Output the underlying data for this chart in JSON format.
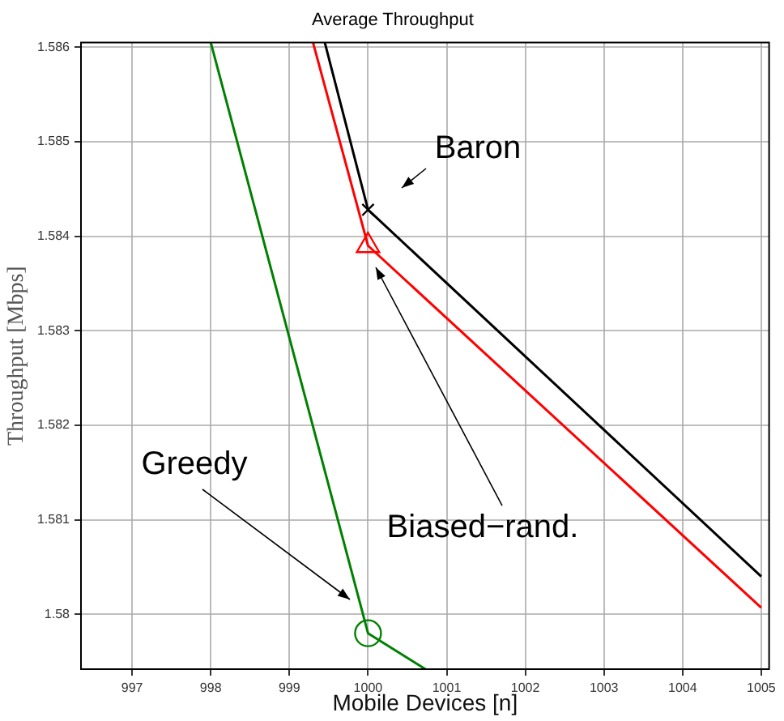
{
  "chart_data": {
    "type": "line",
    "title": "Average Throughput",
    "xlabel": "Mobile Devices [n]",
    "ylabel": "Throughput [Mbps]",
    "xlim": [
      996.35,
      1005.1
    ],
    "xticks": [
      997,
      998,
      999,
      1000,
      1001,
      1002,
      1003,
      1004,
      1005
    ],
    "ylim": [
      1.57942,
      1.58605
    ],
    "yticks": [
      1.58,
      1.581,
      1.582,
      1.583,
      1.584,
      1.585,
      1.586
    ],
    "grid": true,
    "line_style": "solid",
    "series": [
      {
        "color": "#000000",
        "x": [
          999.45,
          1000,
          1005
        ],
        "values": [
          1.58605,
          1.58428,
          1.5804
        ],
        "marker": "none"
      },
      {
        "color": "#ff0000",
        "x": [
          999.3,
          1000,
          1005
        ],
        "values": [
          1.58605,
          1.5839,
          1.58007
        ],
        "marker": "none"
      },
      {
        "color": "#008000",
        "x": [
          998,
          1000,
          1000.73
        ],
        "values": [
          1.58605,
          1.5798,
          1.57942
        ],
        "marker": "none"
      },
      {
        "type": "scatter",
        "color": "#000000",
        "x": [
          1000
        ],
        "values": [
          1.58428
        ],
        "marker": "cross"
      },
      {
        "type": "scatter",
        "color": "#ff0000",
        "x": [
          1000
        ],
        "values": [
          1.5839
        ],
        "marker": "triangle"
      },
      {
        "type": "scatter",
        "color": "#008000",
        "x": [
          1000
        ],
        "values": [
          1.5798
        ],
        "marker": "circle"
      }
    ],
    "annotations": [
      "Baron",
      "Biased−rand.",
      "Greedy"
    ]
  }
}
